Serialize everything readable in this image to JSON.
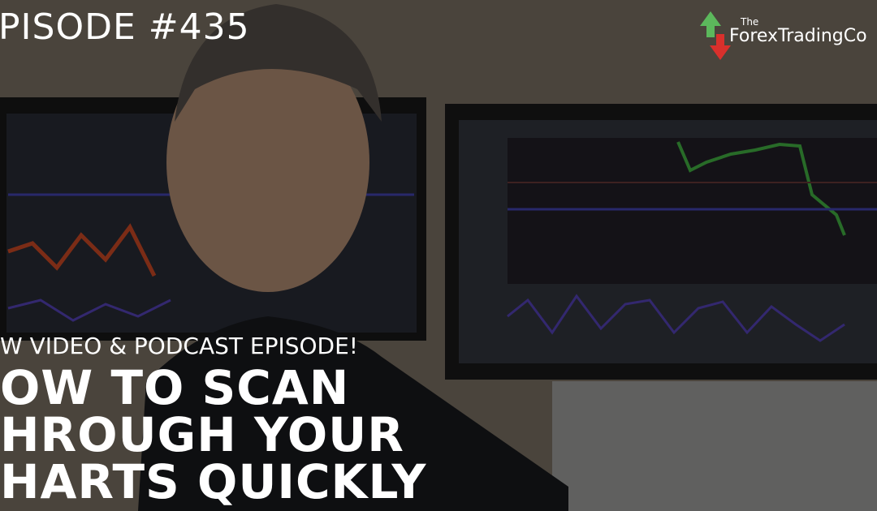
{
  "episode": "PISODE #435",
  "logo": {
    "small": "The",
    "name": "ForexTradingCo"
  },
  "kicker": "W VIDEO & PODCAST EPISODE!",
  "headline": [
    "OW TO SCAN",
    "HROUGH YOUR",
    "HARTS QUICKLY"
  ]
}
